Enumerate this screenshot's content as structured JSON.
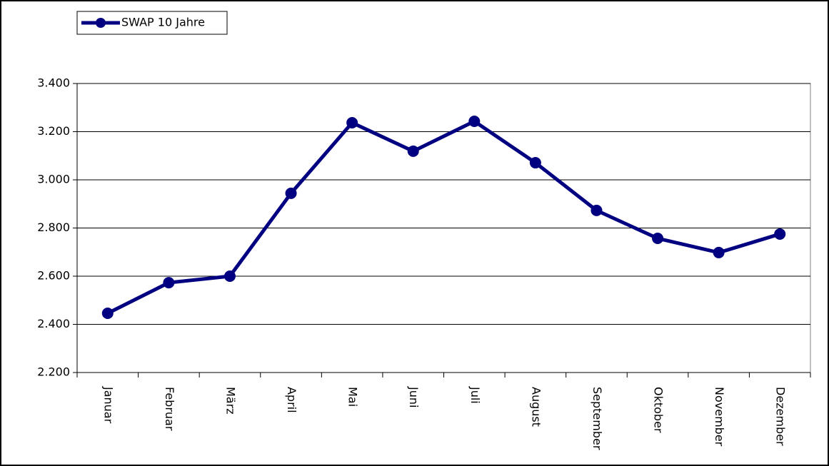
{
  "chart_data": {
    "type": "line",
    "categories": [
      "Januar",
      "Februar",
      "März",
      "April",
      "Mai",
      "Juni",
      "Juli",
      "August",
      "September",
      "Oktober",
      "November",
      "Dezember"
    ],
    "series": [
      {
        "name": "SWAP 10 Jahre",
        "color": "#000080",
        "values": [
          2.446,
          2.573,
          2.6,
          2.944,
          3.237,
          3.119,
          3.243,
          3.071,
          2.873,
          2.757,
          2.698,
          2.775
        ]
      }
    ],
    "ylim": [
      2.2,
      3.4
    ],
    "yticks": [
      {
        "value": 2.2,
        "label": "2.200"
      },
      {
        "value": 2.4,
        "label": "2.400"
      },
      {
        "value": 2.6,
        "label": "2.600"
      },
      {
        "value": 2.8,
        "label": "2.800"
      },
      {
        "value": 3.0,
        "label": "3.000"
      },
      {
        "value": 3.2,
        "label": "3.200"
      },
      {
        "value": 3.4,
        "label": "3.400"
      }
    ],
    "grid": true,
    "legend": "top-left"
  }
}
